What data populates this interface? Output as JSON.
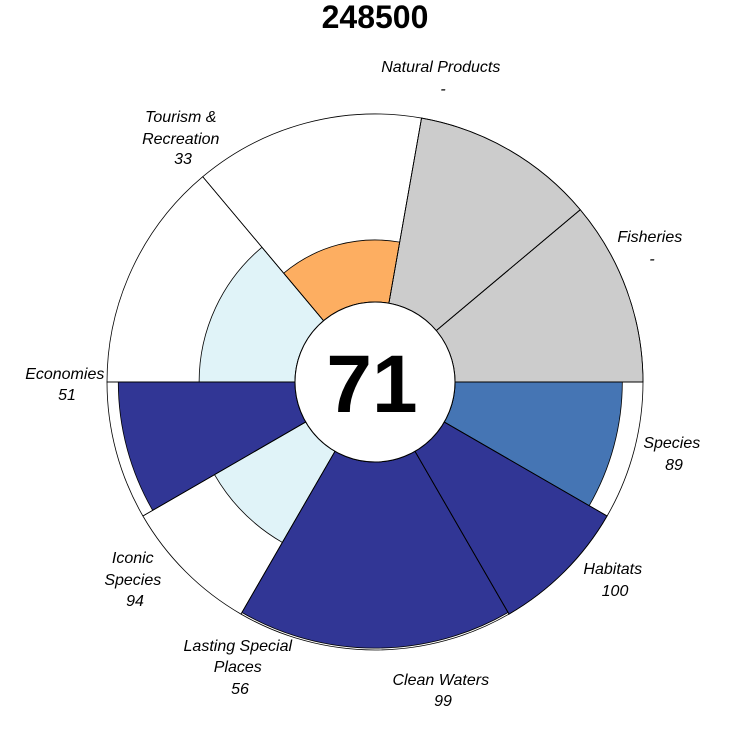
{
  "chart_data": {
    "type": "flower",
    "title": "248500",
    "center_score": "71",
    "max_score": 100,
    "no_data_color": "#cccccc",
    "petals": [
      {
        "name": "Fisheries",
        "score": null,
        "score_label": "-",
        "start_deg": 0,
        "end_deg": 40,
        "color": "#cccccc"
      },
      {
        "name": "Natural Products",
        "score": null,
        "score_label": "-",
        "start_deg": 40,
        "end_deg": 80,
        "color": "#cccccc"
      },
      {
        "name": "Tourism & Recreation",
        "score": 33,
        "score_label": "33",
        "start_deg": 80,
        "end_deg": 130,
        "color": "#fdae61"
      },
      {
        "name": "Economies",
        "score": 51,
        "score_label": "51",
        "start_deg": 130,
        "end_deg": 180,
        "color": "#e0f3f8"
      },
      {
        "name": "Iconic Species",
        "score": 94,
        "score_label": "94",
        "start_deg": 180,
        "end_deg": 210,
        "color": "#313695"
      },
      {
        "name": "Lasting Special Places",
        "score": 56,
        "score_label": "56",
        "start_deg": 210,
        "end_deg": 240,
        "color": "#e0f3f8"
      },
      {
        "name": "Clean Waters",
        "score": 99,
        "score_label": "99",
        "start_deg": 240,
        "end_deg": 300,
        "color": "#313695"
      },
      {
        "name": "Habitats",
        "score": 100,
        "score_label": "100",
        "start_deg": 300,
        "end_deg": 330,
        "color": "#313695"
      },
      {
        "name": "Species",
        "score": 89,
        "score_label": "89",
        "start_deg": 330,
        "end_deg": 360,
        "color": "#4575b4"
      }
    ]
  }
}
